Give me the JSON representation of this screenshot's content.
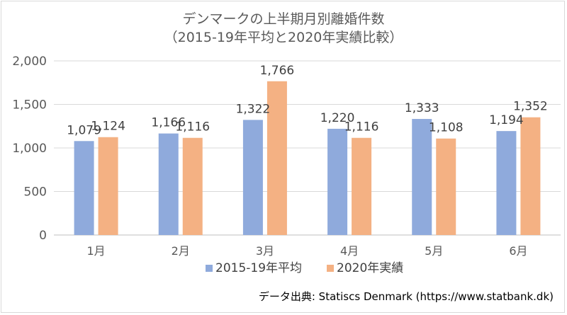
{
  "chart_data": {
    "type": "bar",
    "title_lines": [
      "デンマークの上半期月別離婚件数",
      "（2015-19年平均と2020年実績比較）"
    ],
    "categories": [
      "1月",
      "2月",
      "3月",
      "4月",
      "5月",
      "6月"
    ],
    "series": [
      {
        "name": "2015-19年平均",
        "values": [
          1079,
          1166,
          1322,
          1220,
          1333,
          1194
        ],
        "labels": [
          "1,079",
          "1,166",
          "1,322",
          "1,220",
          "1,333",
          "1,194"
        ],
        "color": "#8faadc"
      },
      {
        "name": "2020年実績",
        "values": [
          1124,
          1116,
          1766,
          1116,
          1108,
          1352
        ],
        "labels": [
          "1,124",
          "1,116",
          "1,766",
          "1,116",
          "1,108",
          "1,352"
        ],
        "color": "#f4b183"
      }
    ],
    "ylim": [
      0,
      2000
    ],
    "yticks": [
      0,
      500,
      1000,
      1500,
      2000
    ],
    "ytick_labels": [
      "0",
      "500",
      "1,000",
      "1,500",
      "2,000"
    ],
    "grid": true,
    "legend": "bottom"
  },
  "source": "データ出典: Statiscs Denmark (https://www.statbank.dk)"
}
